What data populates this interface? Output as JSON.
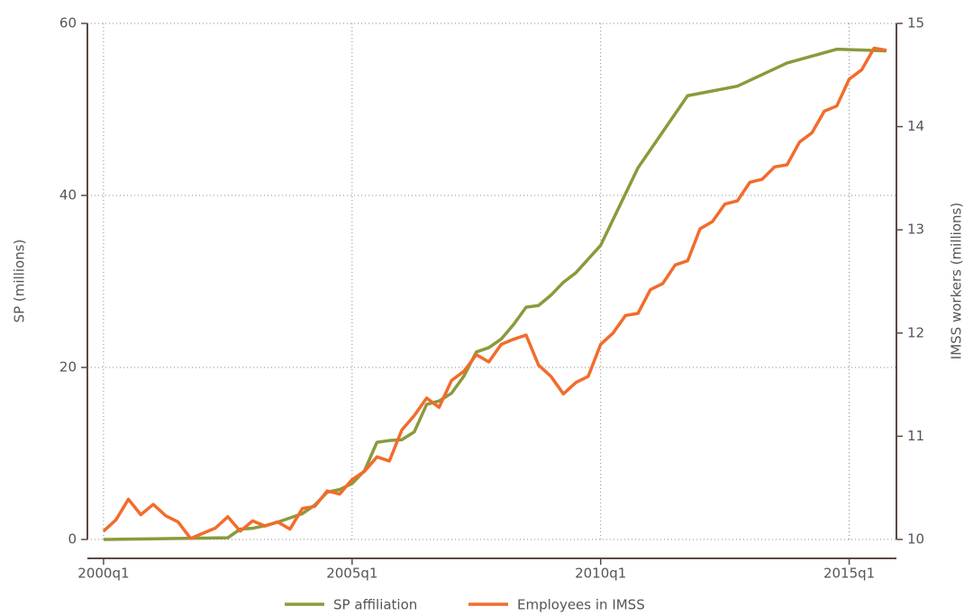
{
  "chart_data": {
    "type": "line",
    "ylabel": "SP (millions)",
    "y2label": "IMSS workers (millions)",
    "xlim": [
      158.7,
      223.8
    ],
    "xticks": [
      {
        "value": 160,
        "label": "2000q1"
      },
      {
        "value": 180,
        "label": "2005q1"
      },
      {
        "value": 200,
        "label": "2010q1"
      },
      {
        "value": 220,
        "label": "2015q1"
      }
    ],
    "ylim": [
      0,
      60
    ],
    "yticks": [
      0,
      20,
      40,
      60
    ],
    "y2lim": [
      10,
      15
    ],
    "y2ticks": [
      10,
      11,
      12,
      13,
      14,
      15
    ],
    "grid": true,
    "legend": "bottom",
    "series": [
      {
        "name": "SP affiliation",
        "color": "#8a9a3c",
        "x": [
          160,
          170,
          171,
          172,
          173,
          174,
          175,
          176,
          177,
          178,
          179,
          180,
          181,
          182,
          183,
          184,
          185,
          186,
          187,
          188,
          189,
          190,
          191,
          192,
          193,
          194,
          195,
          196,
          197,
          198,
          200,
          203,
          207,
          211,
          215,
          219,
          223
        ],
        "values": [
          0,
          0.2,
          1.2,
          1.3,
          1.6,
          2.0,
          2.5,
          3.0,
          4.0,
          5.5,
          5.8,
          6.5,
          8.0,
          11.3,
          11.5,
          11.6,
          12.5,
          15.7,
          16.1,
          17.0,
          19.0,
          21.8,
          22.3,
          23.3,
          25.0,
          27.0,
          27.2,
          28.4,
          29.9,
          31.0,
          34.2,
          43.2,
          51.6,
          52.7,
          55.4,
          57.0,
          56.8
        ]
      },
      {
        "name": "Employees in IMSS",
        "color": "#f26c2b",
        "axis": "y2",
        "x": [
          160,
          161,
          162,
          163,
          164,
          165,
          166,
          167,
          168,
          169,
          170,
          171,
          172,
          173,
          174,
          175,
          176,
          177,
          178,
          179,
          180,
          181,
          182,
          183,
          184,
          185,
          186,
          187,
          188,
          189,
          190,
          191,
          192,
          193,
          194,
          195,
          196,
          197,
          198,
          199,
          200,
          201,
          202,
          203,
          204,
          205,
          206,
          207,
          208,
          209,
          210,
          211,
          212,
          213,
          214,
          215,
          216,
          217,
          218,
          219,
          220,
          221,
          222,
          223
        ],
        "values": [
          10.08,
          10.19,
          10.39,
          10.24,
          10.34,
          10.23,
          10.17,
          10.01,
          10.06,
          10.11,
          10.22,
          10.08,
          10.18,
          10.13,
          10.17,
          10.1,
          10.3,
          10.32,
          10.47,
          10.44,
          10.58,
          10.66,
          10.8,
          10.76,
          11.06,
          11.2,
          11.37,
          11.28,
          11.54,
          11.63,
          11.79,
          11.72,
          11.89,
          11.94,
          11.98,
          11.69,
          11.58,
          11.41,
          11.52,
          11.58,
          11.89,
          12.0,
          12.17,
          12.19,
          12.42,
          12.48,
          12.66,
          12.7,
          13.01,
          13.08,
          13.25,
          13.28,
          13.46,
          13.49,
          13.61,
          13.63,
          13.85,
          13.94,
          14.15,
          14.2,
          14.46,
          14.55,
          14.76,
          14.74
        ]
      }
    ]
  }
}
